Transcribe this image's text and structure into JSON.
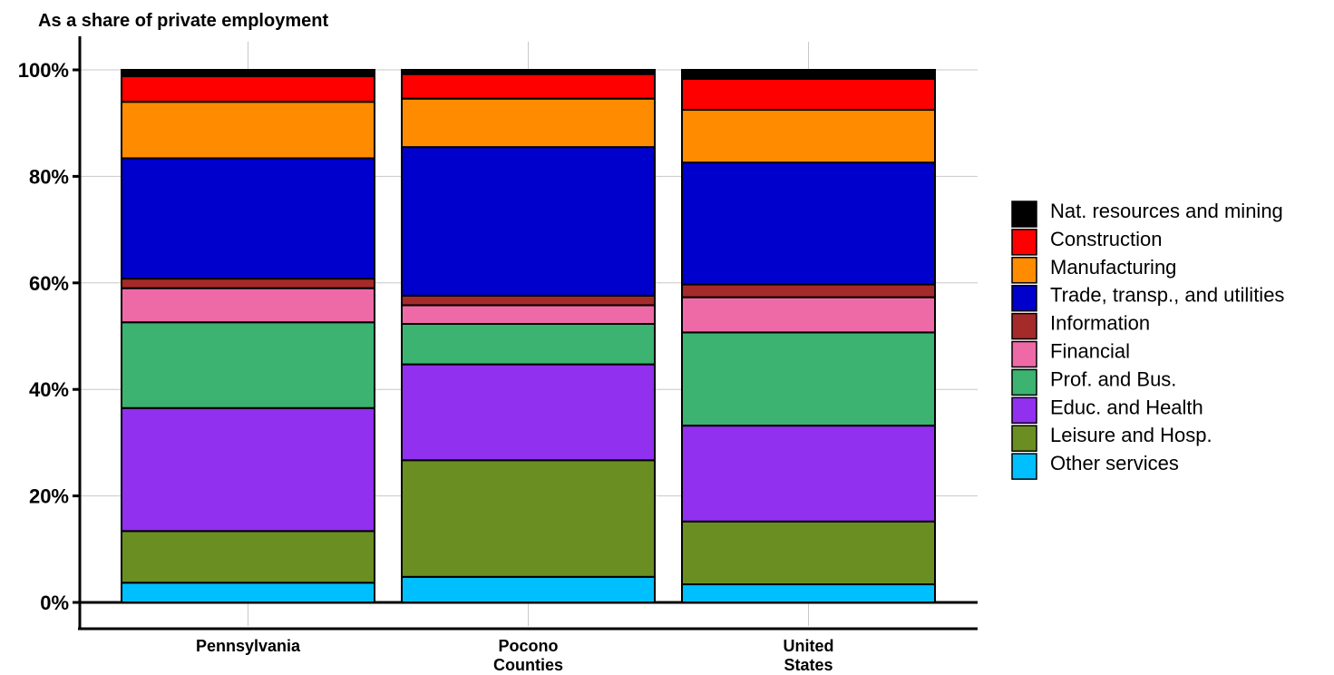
{
  "chart_data": {
    "type": "bar",
    "stacked": true,
    "title": "As a share of private employment",
    "xlabel": "",
    "ylabel": "",
    "ylim": [
      0,
      100
    ],
    "yticks": [
      0,
      20,
      40,
      60,
      80,
      100
    ],
    "ytick_labels": [
      "0%",
      "20%",
      "40%",
      "60%",
      "80%",
      "100%"
    ],
    "grid": true,
    "legend_position": "right",
    "categories": [
      {
        "label_lines": [
          "Pennsylvania"
        ]
      },
      {
        "label_lines": [
          "Pocono",
          "Counties"
        ]
      },
      {
        "label_lines": [
          "United",
          "States"
        ]
      }
    ],
    "series": [
      {
        "name": "Other services",
        "color": "#00bfff",
        "values": [
          3.7,
          4.8,
          3.4
        ]
      },
      {
        "name": "Leisure and Hosp.",
        "color": "#6b8e23",
        "values": [
          9.7,
          21.9,
          11.8
        ]
      },
      {
        "name": "Educ. and Health",
        "color": "#9130ef",
        "values": [
          23.1,
          18.0,
          18.0
        ]
      },
      {
        "name": "Prof. and Bus.",
        "color": "#3cb371",
        "values": [
          16.1,
          7.6,
          17.5
        ]
      },
      {
        "name": "Financial",
        "color": "#ee6aa7",
        "values": [
          6.4,
          3.5,
          6.6
        ]
      },
      {
        "name": "Information",
        "color": "#a52a2a",
        "values": [
          1.8,
          1.8,
          2.4
        ]
      },
      {
        "name": "Trade, transp., and utilities",
        "color": "#0000cd",
        "values": [
          22.6,
          27.9,
          22.9
        ]
      },
      {
        "name": "Manufacturing",
        "color": "#ff8c00",
        "values": [
          10.6,
          9.1,
          9.9
        ]
      },
      {
        "name": "Construction",
        "color": "#ff0000",
        "values": [
          4.8,
          4.6,
          5.8
        ]
      },
      {
        "name": "Nat. resources and mining",
        "color": "#000000",
        "values": [
          1.2,
          0.8,
          1.7
        ]
      }
    ],
    "legend_order": [
      "Nat. resources and mining",
      "Construction",
      "Manufacturing",
      "Trade, transp., and utilities",
      "Information",
      "Financial",
      "Prof. and Bus.",
      "Educ. and Health",
      "Leisure and Hosp.",
      "Other services"
    ]
  }
}
